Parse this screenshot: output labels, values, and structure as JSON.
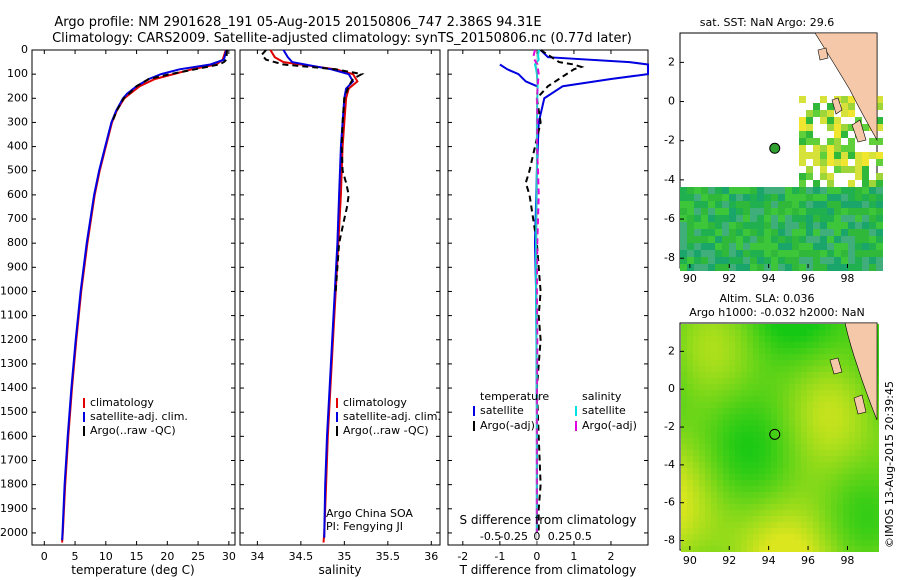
{
  "header": {
    "line1": "Argo profile: NM 2901628_191 05-Aug-2015 20150806_747 2.386S 94.31E",
    "line2": "Climatology: CARS2009. Satellite-adjusted climatology: synTS_20150806.nc (0.77d later)"
  },
  "depth_ticks": [
    "0",
    "100",
    "200",
    "300",
    "400",
    "500",
    "600",
    "700",
    "800",
    "900",
    "1000",
    "1100",
    "1200",
    "1300",
    "1400",
    "1500",
    "1600",
    "1700",
    "1800",
    "1900",
    "2000"
  ],
  "colors": {
    "red": "#e00000",
    "blue": "#0000e0",
    "black": "#000000",
    "cyan": "#00e0e0",
    "magenta": "#e000e0"
  },
  "chart_data": [
    {
      "type": "line",
      "id": "temperature",
      "xlabel": "temperature (deg C)",
      "xlim": [
        -2,
        31
      ],
      "ylim": [
        2050,
        0
      ],
      "x_ticks": [
        "0",
        "5",
        "10",
        "15",
        "20",
        "25",
        "30"
      ],
      "legend": [
        "climatology",
        "satellite-adj. clim.",
        "Argo(..raw -QC)"
      ],
      "series": [
        {
          "name": "climatology",
          "color": "red",
          "depth": [
            0,
            40,
            60,
            80,
            100,
            120,
            150,
            180,
            200,
            250,
            300,
            400,
            500,
            600,
            800,
            1000,
            1200,
            1400,
            1600,
            1800,
            2000,
            2040
          ],
          "values": [
            29.5,
            29.0,
            28.0,
            24.0,
            21.0,
            18.0,
            15.5,
            14.0,
            13.0,
            11.8,
            11.0,
            10.0,
            9.0,
            8.2,
            7.0,
            6.0,
            5.2,
            4.5,
            3.9,
            3.4,
            3.0,
            2.9
          ]
        },
        {
          "name": "satellite-adj. clim.",
          "color": "blue",
          "depth": [
            0,
            40,
            60,
            80,
            100,
            120,
            150,
            180,
            200,
            250,
            300,
            400,
            500,
            600,
            800,
            1000,
            1200,
            1400,
            1600,
            1800,
            2000,
            2030
          ],
          "values": [
            29.6,
            29.2,
            27.0,
            22.0,
            19.0,
            17.0,
            15.0,
            13.5,
            12.8,
            11.7,
            10.9,
            9.9,
            8.9,
            8.1,
            6.9,
            5.9,
            5.1,
            4.4,
            3.8,
            3.3,
            2.95,
            2.9
          ]
        },
        {
          "name": "Argo(..raw -QC)",
          "color": "black",
          "depth": [
            0,
            40,
            50,
            60,
            80,
            100,
            120,
            150,
            180,
            200,
            250,
            300
          ],
          "values": [
            29.7,
            29.6,
            29.2,
            28.4,
            24.5,
            20.5,
            17.0,
            15.0,
            13.8,
            12.9,
            11.8,
            11.0
          ]
        }
      ]
    },
    {
      "type": "line",
      "id": "salinity",
      "xlabel": "salinity",
      "xlim": [
        33.8,
        36.1
      ],
      "ylim": [
        2050,
        0
      ],
      "x_ticks": [
        "34",
        "34.5",
        "35",
        "35.5",
        "36"
      ],
      "legend": [
        "climatology",
        "satellite-adj. clim.",
        "Argo(..raw -QC)"
      ],
      "annotations": [
        "Argo China SOA",
        "PI: Fengying JI"
      ],
      "series": [
        {
          "name": "climatology",
          "color": "red",
          "depth": [
            0,
            30,
            50,
            80,
            100,
            130,
            160,
            200,
            300,
            400,
            500,
            600,
            800,
            1000,
            1200,
            1400,
            1600,
            1800,
            2000,
            2040
          ],
          "values": [
            34.15,
            34.2,
            34.3,
            34.9,
            35.1,
            35.15,
            35.05,
            35.02,
            35.0,
            34.98,
            34.97,
            34.96,
            34.93,
            34.9,
            34.87,
            34.84,
            34.81,
            34.79,
            34.77,
            34.76
          ]
        },
        {
          "name": "satellite-adj. clim.",
          "color": "blue",
          "depth": [
            0,
            30,
            50,
            80,
            100,
            130,
            160,
            200,
            300,
            400,
            500,
            600,
            800,
            1000,
            1200,
            1400,
            1600,
            1800,
            2000,
            2020
          ],
          "values": [
            34.3,
            34.35,
            34.4,
            34.85,
            35.05,
            35.1,
            35.02,
            35.0,
            34.98,
            34.96,
            34.95,
            34.94,
            34.92,
            34.89,
            34.86,
            34.83,
            34.8,
            34.78,
            34.77,
            34.77
          ]
        },
        {
          "name": "Argo(..raw -QC)",
          "color": "black",
          "depth": [
            0,
            20,
            40,
            60,
            80,
            100,
            120,
            150,
            200,
            300,
            400,
            500,
            550,
            600,
            650,
            700,
            750,
            800,
            900,
            1000
          ],
          "values": [
            34.1,
            34.05,
            34.1,
            34.3,
            34.9,
            35.2,
            35.1,
            35.05,
            35.0,
            34.98,
            34.97,
            34.98,
            35.02,
            35.05,
            35.03,
            35.0,
            34.97,
            34.94,
            34.92,
            34.9
          ]
        }
      ]
    },
    {
      "type": "line",
      "id": "difference",
      "xlabel": "T difference from climatology",
      "xlabel2": "S difference from climatology",
      "xlim": [
        -2.4,
        3.0
      ],
      "ylim": [
        2050,
        0
      ],
      "x_ticks": [
        "-2",
        "-1",
        "0",
        "1",
        "2"
      ],
      "x2_ticks": [
        "-0.5",
        "-0.25",
        "0",
        "0.25",
        "0.5"
      ],
      "legend_titles": [
        "temperature",
        "salinity"
      ],
      "legend_t": [
        "satellite",
        "Argo(-adj)"
      ],
      "legend_s": [
        "satellite",
        "Argo(-adj)"
      ],
      "series": [
        {
          "name": "T satellite",
          "color": "blue",
          "depth": [
            0,
            30,
            50,
            60,
            70,
            80,
            90,
            100,
            120,
            150,
            200,
            300,
            500,
            800,
            1000,
            1500,
            2000
          ],
          "values": [
            0.1,
            0.3,
            2.5,
            3.0,
            3.0,
            3.0,
            3.0,
            3.0,
            2.0,
            0.7,
            0.2,
            0.05,
            0.0,
            -0.05,
            -0.02,
            0.0,
            0.0
          ]
        },
        {
          "name": "T satellite lower",
          "color": "blue",
          "depth": [
            60,
            80,
            100,
            130,
            150
          ],
          "values": [
            -1.0,
            -0.8,
            -0.5,
            -0.3,
            0.0
          ]
        },
        {
          "name": "T Argo(-adj)",
          "color": "black",
          "depth": [
            0,
            50,
            60,
            70,
            80,
            100,
            150,
            200,
            300,
            400,
            500,
            550,
            600,
            700,
            800,
            900,
            1000,
            1100,
            1200,
            1400,
            1600,
            1800,
            1900,
            2000
          ],
          "values": [
            0.1,
            0.6,
            1.0,
            1.2,
            1.0,
            0.8,
            0.3,
            0.0,
            0.1,
            -0.05,
            -0.2,
            -0.3,
            -0.2,
            -0.1,
            0.0,
            0.05,
            0.1,
            0.05,
            0.1,
            0.0,
            0.05,
            0.1,
            0.05,
            0.05
          ]
        },
        {
          "name": "S satellite",
          "color": "cyan",
          "depth": [
            0,
            20,
            40,
            60,
            80,
            100,
            150,
            200,
            300,
            500,
            800,
            1000,
            1200,
            1500,
            1800,
            2000
          ],
          "values": [
            0.06,
            0.03,
            0.05,
            -0.05,
            -0.02,
            0.0,
            0.02,
            0.01,
            0.0,
            0.0,
            -0.02,
            -0.02,
            -0.01,
            0.0,
            0.0,
            0.0
          ]
        },
        {
          "name": "S Argo(-adj)",
          "color": "magenta",
          "depth": [
            0,
            30,
            50,
            60,
            80,
            100,
            150,
            200,
            300,
            400,
            500,
            600,
            700,
            800,
            1000,
            1200,
            1500,
            1800,
            2000
          ],
          "values": [
            -0.05,
            -0.1,
            -0.03,
            0.02,
            0.03,
            0.05,
            0.02,
            0.0,
            0.01,
            0.0,
            0.03,
            0.05,
            0.03,
            0.01,
            0.0,
            0.01,
            0.0,
            0.0,
            0.0
          ]
        }
      ]
    },
    {
      "type": "heatmap",
      "id": "sst-map",
      "title": "sat. SST: NaN Argo: 29.6",
      "x_ticks": [
        "90",
        "92",
        "94",
        "96",
        "98"
      ],
      "y_ticks": [
        "2",
        "0",
        "-2",
        "-4",
        "-6",
        "-8"
      ],
      "xlim": [
        89.5,
        99.5
      ],
      "ylim": [
        -8.5,
        3.5
      ],
      "argo_position": {
        "lon": 94.31,
        "lat": -2.386
      }
    },
    {
      "type": "heatmap",
      "id": "sla-map",
      "title_line1": "Altim. SLA: 0.036",
      "title_line2": "Argo h1000: -0.032 h2000: NaN",
      "x_ticks": [
        "90",
        "92",
        "94",
        "96",
        "98"
      ],
      "y_ticks": [
        "2",
        "0",
        "-2",
        "-4",
        "-6",
        "-8"
      ],
      "xlim": [
        89.5,
        99.5
      ],
      "ylim": [
        -8.5,
        3.5
      ],
      "argo_position": {
        "lon": 94.31,
        "lat": -2.386
      }
    }
  ],
  "footer": {
    "stamp": "©IMOS 13-Aug-2015 20:39:45"
  }
}
